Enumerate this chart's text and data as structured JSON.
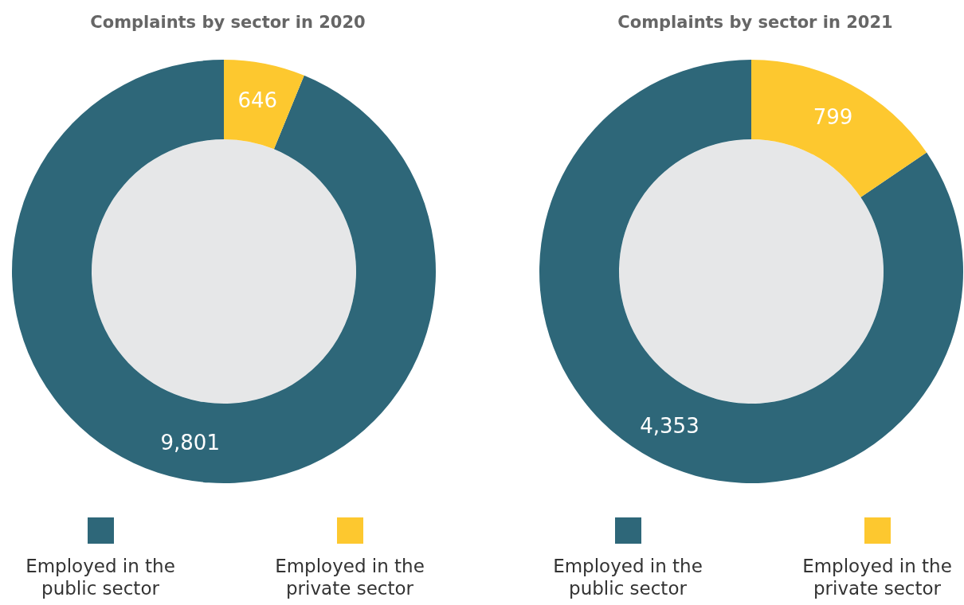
{
  "chart_data": [
    {
      "type": "donut",
      "title": "Complaints by sector in 2020",
      "categories": [
        "Employed in the public sector",
        "Employed in the private sector"
      ],
      "values": [
        9801,
        646
      ],
      "value_labels": [
        "9,801",
        "646"
      ],
      "colors": [
        "#2e6779",
        "#fdc82f"
      ],
      "legend": "bottom"
    },
    {
      "type": "donut",
      "title": "Complaints by sector in 2021",
      "categories": [
        "Employed in the public sector",
        "Employed in the private sector"
      ],
      "values": [
        4353,
        799
      ],
      "value_labels": [
        "4,353",
        "799"
      ],
      "colors": [
        "#2e6779",
        "#fdc82f"
      ],
      "legend": "bottom"
    }
  ]
}
